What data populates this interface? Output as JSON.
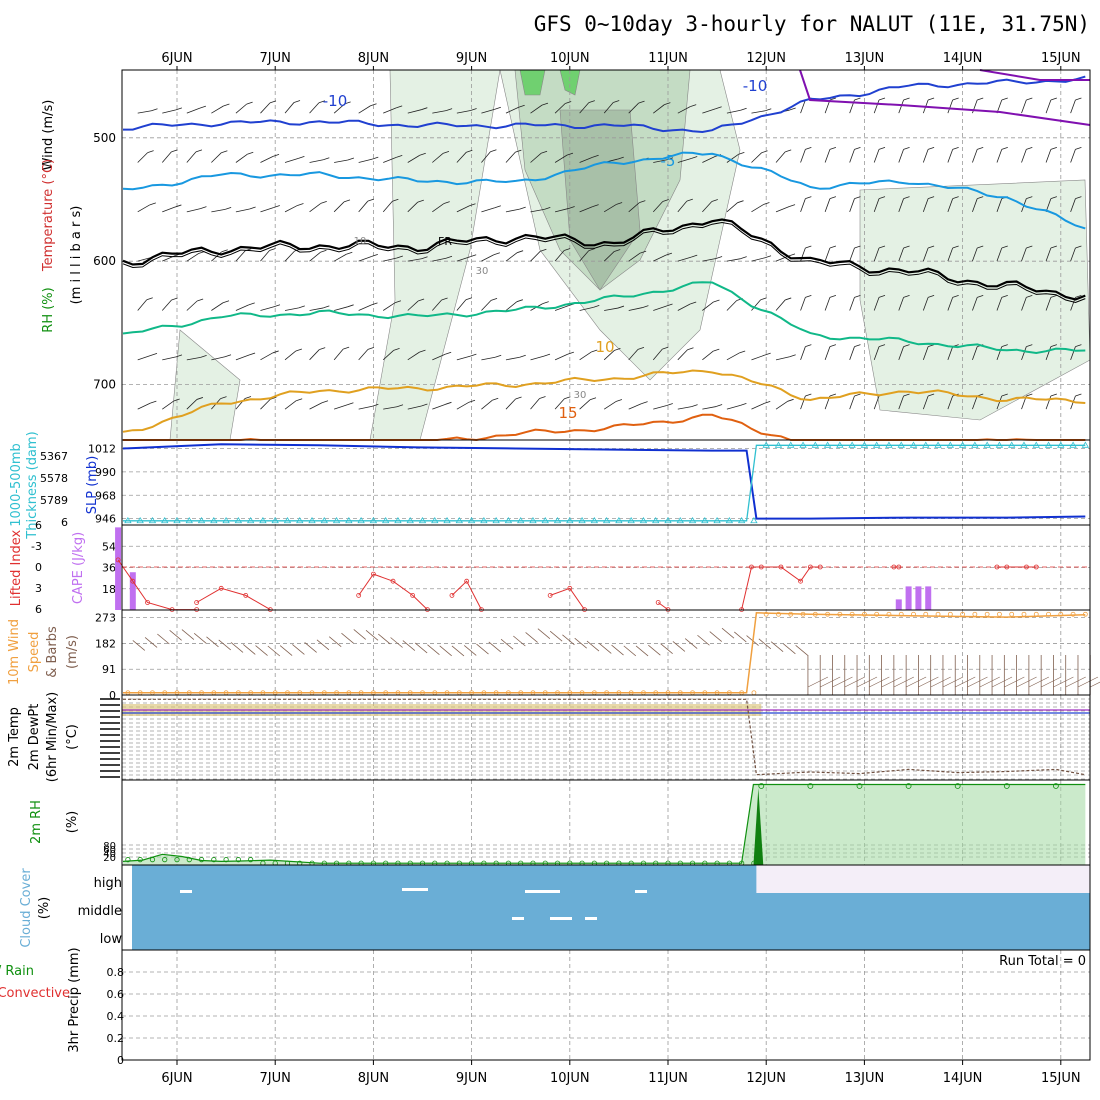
{
  "title": "GFS 0~10day 3-hourly for NALUT (11E, 31.75N)",
  "day_labels": [
    "6JUN",
    "7JUN",
    "8JUN",
    "9JUN",
    "10JUN",
    "11JUN",
    "12JUN",
    "13JUN",
    "14JUN",
    "15JUN"
  ],
  "colors": {
    "temp_m10": "#2040d0",
    "temp_m5": "#1898e0",
    "temp_0": "#000000",
    "temp_5": "#10b888",
    "temp_10": "#e0a020",
    "temp_15": "#e06010",
    "purple": "#8010b0",
    "rh_fill_light": "#e4f1e4",
    "rh_fill_mid": "#c4dcc4",
    "rh_fill_dark": "#a8c0a8",
    "rh_fill_bright": "#70d070",
    "slp": "#1030d0",
    "thickness": "#30c0d0",
    "cape": "#c070f0",
    "lifted": "#e03030",
    "wind10": "#f0a040",
    "barb10": "#806050",
    "rh2m": "#109010",
    "cloud": "#6aaed6",
    "cloud_high_clear": "#f4eef8",
    "precip": "#000000"
  },
  "chart_data": [
    {
      "type": "line",
      "title": "",
      "panel": "upper-air",
      "ylabels": [
        "Wind (m/s)",
        "Temperature (°C)",
        "RH (%)",
        "(millibars)"
      ],
      "y_axis_label_spaced": "(m i l l i b a r s)",
      "y_ticks": [
        500,
        600,
        700
      ],
      "ylim": [
        745,
        445
      ],
      "contour_labels": [
        "-10",
        "-10",
        "-5",
        "FR",
        "10",
        "15",
        "10",
        "30",
        "30"
      ],
      "x": [
        0,
        1,
        2,
        3,
        4,
        5,
        6,
        7,
        8,
        9,
        10
      ],
      "series": [
        {
          "name": "-10",
          "values": [
            492,
            488,
            487,
            490,
            490,
            490,
            495,
            470,
            458,
            455,
            452
          ]
        },
        {
          "name": "-5",
          "values": [
            543,
            530,
            530,
            535,
            536,
            520,
            512,
            540,
            535,
            548,
            580
          ]
        },
        {
          "name": "FR",
          "values": [
            600,
            590,
            587,
            588,
            580,
            585,
            565,
            600,
            608,
            620,
            630
          ]
        },
        {
          "name": "5",
          "values": [
            660,
            645,
            642,
            645,
            640,
            630,
            617,
            660,
            665,
            672,
            673
          ]
        },
        {
          "name": "10",
          "values": [
            740,
            715,
            705,
            703,
            700,
            695,
            688,
            712,
            705,
            712,
            713
          ]
        },
        {
          "name": "15",
          "values": [
            760,
            745,
            750,
            748,
            740,
            735,
            725,
            750,
            752,
            745,
            748
          ]
        }
      ]
    },
    {
      "type": "line",
      "title": "",
      "panel": "slp-thickness",
      "ylabels": [
        "SLP (mb)",
        "1000-500mb",
        "Thickness (dam)"
      ],
      "y_ticks_left": [
        "5367",
        "5578",
        "5789",
        "6"
      ],
      "y_ticks_right": [
        "1012",
        "990",
        "968",
        "946"
      ],
      "y_ticks_right_values": [
        1012,
        990,
        968,
        946
      ],
      "ylim": [
        940,
        1020
      ],
      "x": [
        0,
        1,
        2,
        3,
        4,
        5,
        6,
        6.35,
        6.45,
        7,
        8,
        9,
        9.8
      ],
      "series": [
        {
          "name": "SLP",
          "values": [
            1012,
            1016,
            1015,
            1013,
            1012,
            1011,
            1010,
            1010,
            946,
            946,
            947,
            947,
            948
          ]
        },
        {
          "name": "Thickness",
          "values": [
            944,
            944,
            944,
            944,
            944,
            944,
            944,
            944,
            1015,
            1015,
            1015,
            1015,
            1015
          ]
        }
      ]
    },
    {
      "type": "bar",
      "title": "",
      "panel": "cape-li",
      "ylabels": [
        "CAPE (J/kg)",
        "Lifted Index"
      ],
      "y_ticks_left": [
        "6",
        "-3",
        "0",
        "3",
        "6"
      ],
      "y_ticks_right": [
        "54",
        "36",
        "18"
      ],
      "y_ticks_right_values": [
        54,
        36,
        18
      ],
      "ylim": [
        0,
        72
      ],
      "cape_x": [
        -0.05,
        0.1,
        7.9,
        8.0,
        8.1,
        8.2
      ],
      "cape_values": [
        70,
        32,
        9,
        20,
        20,
        20
      ],
      "li_segments": [
        {
          "x": [
            -0.05,
            0.1,
            0.25,
            0.5,
            0.75
          ],
          "values": [
            -1,
            2,
            5,
            6,
            6
          ]
        },
        {
          "x": [
            0.75,
            1.0,
            1.25,
            1.5
          ],
          "values": [
            5,
            3,
            4,
            6
          ]
        },
        {
          "x": [
            2.4,
            2.55,
            2.75,
            2.95,
            3.1
          ],
          "values": [
            4,
            1,
            2,
            4,
            6
          ]
        },
        {
          "x": [
            3.35,
            3.5,
            3.65
          ],
          "values": [
            4,
            2,
            6
          ]
        },
        {
          "x": [
            4.35,
            4.55,
            4.7
          ],
          "values": [
            4,
            3,
            6
          ]
        },
        {
          "x": [
            5.45,
            5.55
          ],
          "values": [
            5,
            6
          ]
        },
        {
          "x": [
            6.3,
            6.4,
            6.5,
            6.7,
            6.9,
            7.0,
            7.1
          ],
          "values": [
            6,
            0,
            0,
            0,
            2,
            0,
            0
          ]
        },
        {
          "x": [
            7.85,
            7.9
          ],
          "values": [
            0,
            0
          ]
        },
        {
          "x": [
            8.9,
            9.0,
            9.2,
            9.3
          ],
          "values": [
            0,
            0,
            0,
            0
          ]
        }
      ]
    },
    {
      "type": "line",
      "title": "",
      "panel": "wind10m",
      "ylabels": [
        "10m Wind",
        "Speed",
        "& Barbs",
        "(m/s)"
      ],
      "y_ticks": [
        0,
        91,
        182,
        273
      ],
      "ylim": [
        0,
        300
      ],
      "x": [
        0,
        1,
        2,
        3,
        4,
        5,
        6,
        6.35,
        6.45,
        7,
        8,
        9,
        9.8
      ],
      "series": [
        {
          "name": "10m Wind",
          "values": [
            8,
            8,
            8,
            8,
            8,
            8,
            8,
            8,
            290,
            285,
            280,
            275,
            283
          ]
        }
      ]
    },
    {
      "type": "line",
      "title": "",
      "panel": "temp2m",
      "ylabels": [
        "2m Temp",
        "2m DewPt",
        "(6hr Min/Max)",
        "(°C)"
      ],
      "ylim": [
        -100,
        60
      ],
      "x": [
        0,
        1,
        2,
        3,
        4,
        5,
        6,
        6.35,
        6.45,
        7,
        7.5,
        8,
        8.5,
        9,
        9.5,
        9.8
      ],
      "series": [
        {
          "name": "2m Temp",
          "values": [
            52,
            52,
            52,
            52,
            52,
            52,
            52,
            52,
            -90,
            -85,
            -88,
            -80,
            -86,
            -84,
            -80,
            -90
          ]
        }
      ]
    },
    {
      "type": "area",
      "title": "",
      "panel": "rh2m",
      "ylabels": [
        "2m RH",
        "(%)"
      ],
      "y_ticks": [
        "80",
        "60",
        "40",
        "20"
      ],
      "y_tick_values": [
        80,
        60,
        40,
        20
      ],
      "ylim": [
        0,
        950
      ],
      "x": [
        0,
        0.2,
        0.4,
        0.6,
        0.8,
        1.0,
        1.2,
        1.5,
        2,
        3,
        4,
        5,
        6,
        6.3,
        6.42,
        6.5,
        7,
        8,
        9,
        9.8
      ],
      "series": [
        {
          "name": "2m RH",
          "values": [
            40,
            55,
            120,
            95,
            50,
            40,
            45,
            55,
            20,
            20,
            20,
            20,
            20,
            20,
            900,
            900,
            900,
            900,
            900,
            900
          ]
        }
      ]
    },
    {
      "type": "area",
      "title": "",
      "panel": "cloud",
      "ylabels": [
        "Cloud Cover",
        "(%)"
      ],
      "y_ticks": [
        "high",
        "middle",
        "low"
      ],
      "high_clear_from_x": 6.45
    },
    {
      "type": "bar",
      "title": "",
      "panel": "precip",
      "ylabels": [
        "3hr Precip (mm)",
        "Total / Rain",
        "Convective"
      ],
      "y_ticks": [
        "0.8",
        "0.6",
        "0.4",
        "0.2",
        "0"
      ],
      "y_tick_values": [
        0.8,
        0.6,
        0.4,
        0.2,
        0
      ],
      "ylim": [
        0,
        1.0
      ],
      "annotation": "Run Total = 0",
      "values": []
    }
  ]
}
